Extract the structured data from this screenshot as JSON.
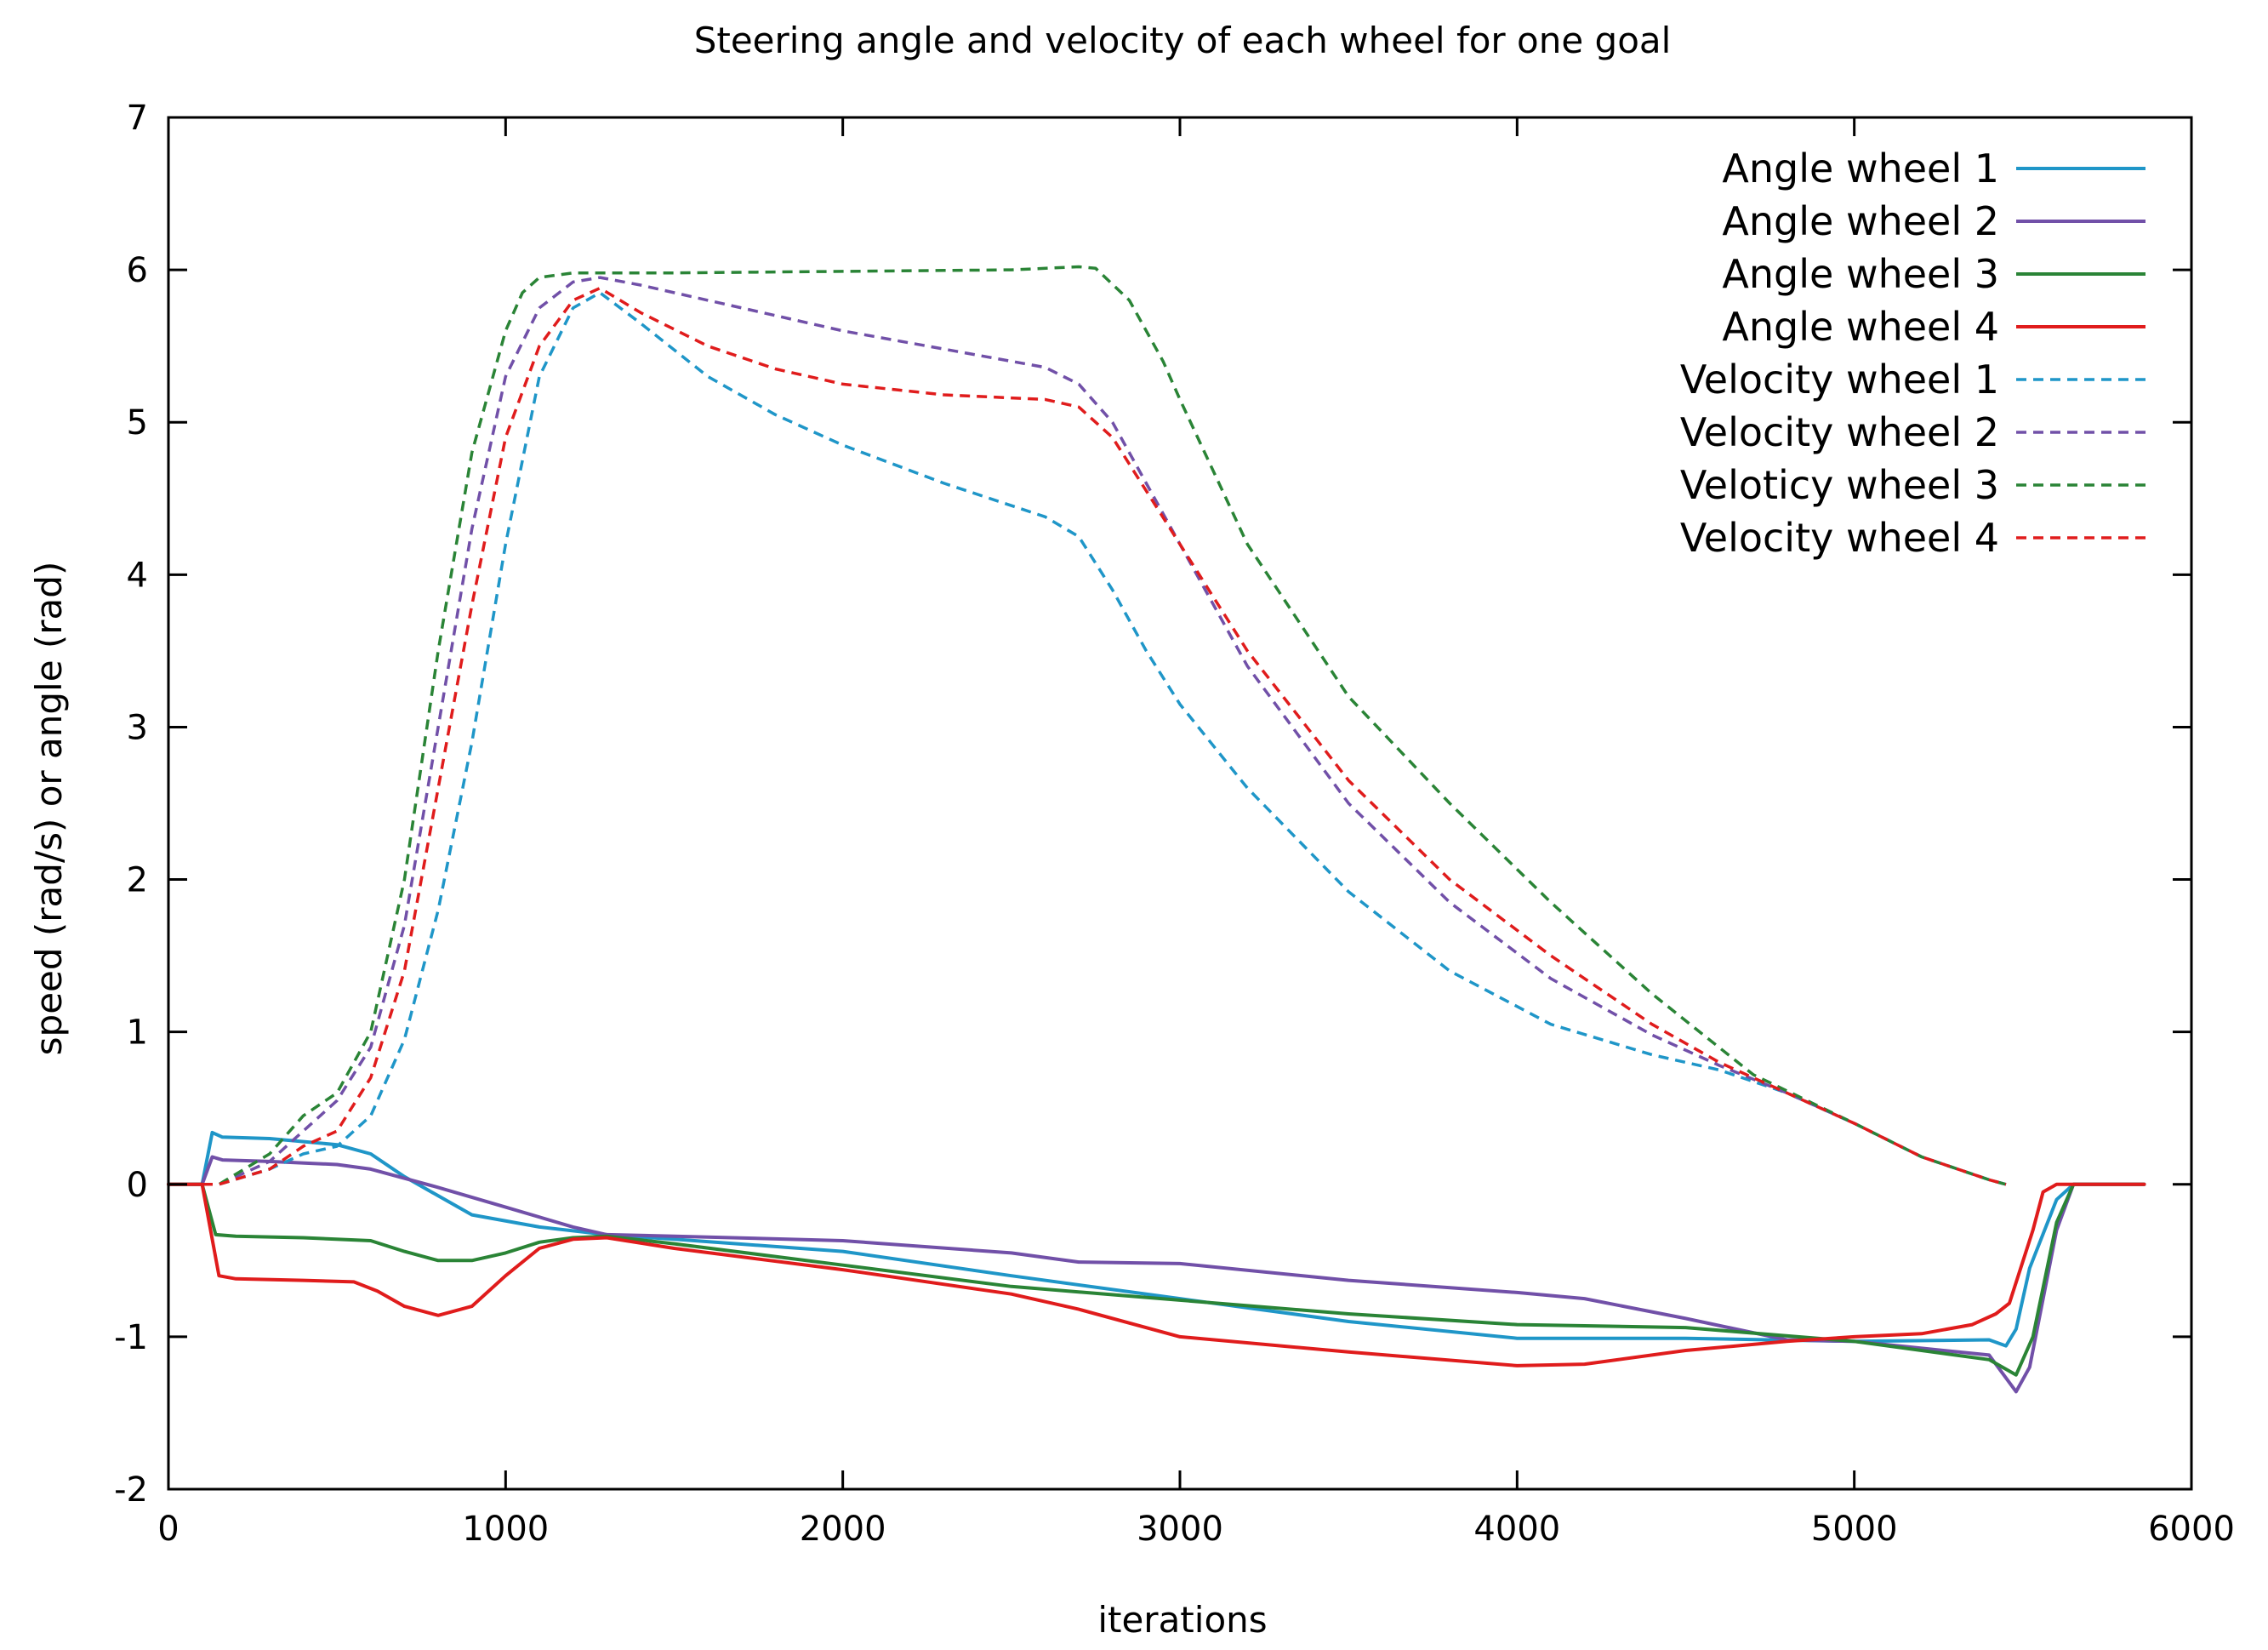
{
  "chart_data": {
    "type": "line",
    "title": "Steering angle and velocity of each wheel for one goal",
    "xlabel": "iterations",
    "ylabel": "speed (rad/s) or angle (rad)",
    "xlim": [
      0,
      6000
    ],
    "ylim": [
      -2,
      7
    ],
    "xticks": [
      0,
      1000,
      2000,
      3000,
      4000,
      5000,
      6000
    ],
    "yticks": [
      -2,
      -1,
      0,
      1,
      2,
      3,
      4,
      5,
      6,
      7
    ],
    "grid": false,
    "legend_position": "top-right",
    "series": [
      {
        "name": "Angle wheel 1",
        "color": "#1f96c8",
        "dash": "solid",
        "x": [
          0,
          100,
          130,
          160,
          300,
          500,
          600,
          700,
          900,
          1100,
          1300,
          1500,
          2000,
          2500,
          3000,
          3500,
          4000,
          4500,
          5000,
          5400,
          5450,
          5480,
          5520,
          5600,
          5650,
          5860
        ],
        "y": [
          0,
          0,
          0.34,
          0.31,
          0.3,
          0.26,
          0.2,
          0.05,
          -0.2,
          -0.28,
          -0.33,
          -0.36,
          -0.44,
          -0.6,
          -0.75,
          -0.9,
          -1.01,
          -1.01,
          -1.03,
          -1.02,
          -1.06,
          -0.95,
          -0.55,
          -0.1,
          0,
          0
        ]
      },
      {
        "name": "Angle wheel 2",
        "color": "#7150a8",
        "dash": "solid",
        "x": [
          0,
          100,
          130,
          160,
          300,
          500,
          600,
          800,
          1000,
          1200,
          1300,
          1500,
          2000,
          2500,
          2700,
          3000,
          3500,
          4000,
          4200,
          4500,
          4800,
          5000,
          5400,
          5480,
          5520,
          5600,
          5650,
          5860
        ],
        "y": [
          0,
          0,
          0.18,
          0.16,
          0.15,
          0.13,
          0.1,
          -0.02,
          -0.15,
          -0.28,
          -0.33,
          -0.34,
          -0.37,
          -0.45,
          -0.51,
          -0.52,
          -0.63,
          -0.71,
          -0.75,
          -0.88,
          -1.02,
          -1.03,
          -1.12,
          -1.36,
          -1.2,
          -0.3,
          0,
          0
        ]
      },
      {
        "name": "Angle wheel 3",
        "color": "#2a8436",
        "dash": "solid",
        "x": [
          0,
          100,
          140,
          200,
          400,
          600,
          700,
          800,
          900,
          1000,
          1100,
          1200,
          1300,
          1500,
          2000,
          2500,
          3000,
          3500,
          4000,
          4500,
          5000,
          5400,
          5480,
          5530,
          5600,
          5650,
          5860
        ],
        "y": [
          0,
          0,
          -0.33,
          -0.34,
          -0.35,
          -0.37,
          -0.44,
          -0.5,
          -0.5,
          -0.45,
          -0.38,
          -0.35,
          -0.34,
          -0.39,
          -0.53,
          -0.67,
          -0.76,
          -0.85,
          -0.92,
          -0.94,
          -1.03,
          -1.15,
          -1.25,
          -1.0,
          -0.25,
          0,
          0
        ]
      },
      {
        "name": "Angle wheel 4",
        "color": "#e01c1c",
        "dash": "solid",
        "x": [
          0,
          100,
          150,
          200,
          400,
          550,
          620,
          700,
          800,
          900,
          1000,
          1100,
          1200,
          1300,
          1500,
          2000,
          2500,
          2700,
          3000,
          3500,
          4000,
          4200,
          4500,
          4800,
          5000,
          5200,
          5350,
          5420,
          5460,
          5530,
          5560,
          5600,
          5650,
          5860
        ],
        "y": [
          0,
          0,
          -0.6,
          -0.62,
          -0.63,
          -0.64,
          -0.7,
          -0.8,
          -0.86,
          -0.8,
          -0.6,
          -0.42,
          -0.36,
          -0.35,
          -0.42,
          -0.56,
          -0.72,
          -0.82,
          -1.0,
          -1.1,
          -1.19,
          -1.18,
          -1.09,
          -1.03,
          -1.0,
          -0.98,
          -0.92,
          -0.85,
          -0.78,
          -0.3,
          -0.05,
          0,
          0,
          0
        ]
      },
      {
        "name": "Velocity wheel 1",
        "color": "#1f96c8",
        "dash": "dashed",
        "x": [
          0,
          150,
          300,
          400,
          500,
          600,
          700,
          800,
          900,
          1000,
          1100,
          1200,
          1280,
          1400,
          1600,
          1800,
          2000,
          2300,
          2600,
          2700,
          2800,
          2900,
          3000,
          3200,
          3500,
          3800,
          4100,
          4400,
          4600,
          4800,
          5000,
          5200,
          5400,
          5450
        ],
        "y": [
          0,
          0,
          0.1,
          0.2,
          0.25,
          0.45,
          0.95,
          1.8,
          2.9,
          4.2,
          5.3,
          5.75,
          5.85,
          5.65,
          5.3,
          5.05,
          4.85,
          4.6,
          4.38,
          4.25,
          3.9,
          3.5,
          3.15,
          2.6,
          1.92,
          1.4,
          1.05,
          0.85,
          0.75,
          0.6,
          0.4,
          0.18,
          0.03,
          0
        ]
      },
      {
        "name": "Velocity wheel 2",
        "color": "#7150a8",
        "dash": "dashed",
        "x": [
          0,
          150,
          300,
          400,
          500,
          600,
          700,
          800,
          900,
          1000,
          1100,
          1200,
          1280,
          1400,
          1600,
          1800,
          2000,
          2300,
          2600,
          2700,
          2800,
          2900,
          3000,
          3200,
          3500,
          3800,
          4100,
          4400,
          4600,
          4800,
          5000,
          5200,
          5400,
          5450
        ],
        "y": [
          0,
          0,
          0.15,
          0.35,
          0.55,
          0.9,
          1.7,
          3.0,
          4.3,
          5.3,
          5.75,
          5.92,
          5.95,
          5.9,
          5.8,
          5.7,
          5.6,
          5.48,
          5.36,
          5.25,
          5.0,
          4.6,
          4.2,
          3.4,
          2.5,
          1.85,
          1.35,
          0.98,
          0.78,
          0.6,
          0.4,
          0.18,
          0.03,
          0
        ]
      },
      {
        "name": "Veloticy wheel 3",
        "color": "#2a8436",
        "dash": "dashed",
        "x": [
          0,
          150,
          300,
          400,
          500,
          600,
          700,
          800,
          900,
          1000,
          1050,
          1100,
          1200,
          1300,
          1500,
          2000,
          2500,
          2700,
          2750,
          2850,
          2950,
          3000,
          3200,
          3500,
          3800,
          4100,
          4400,
          4700,
          5000,
          5200,
          5400,
          5450
        ],
        "y": [
          0,
          0,
          0.2,
          0.45,
          0.6,
          1.0,
          2.0,
          3.5,
          4.8,
          5.6,
          5.85,
          5.95,
          5.98,
          5.98,
          5.98,
          5.99,
          6.0,
          6.02,
          6.01,
          5.8,
          5.4,
          5.15,
          4.2,
          3.2,
          2.5,
          1.85,
          1.25,
          0.72,
          0.4,
          0.18,
          0.03,
          0
        ]
      },
      {
        "name": "Velocity wheel 4",
        "color": "#e01c1c",
        "dash": "dashed",
        "x": [
          0,
          150,
          300,
          400,
          500,
          600,
          700,
          800,
          900,
          1000,
          1100,
          1200,
          1280,
          1400,
          1600,
          1800,
          2000,
          2300,
          2600,
          2700,
          2800,
          2900,
          3000,
          3200,
          3500,
          3800,
          4100,
          4400,
          4600,
          4800,
          5000,
          5200,
          5400,
          5450
        ],
        "y": [
          0,
          0,
          0.1,
          0.25,
          0.35,
          0.7,
          1.4,
          2.6,
          3.8,
          4.9,
          5.5,
          5.8,
          5.88,
          5.72,
          5.5,
          5.35,
          5.25,
          5.18,
          5.15,
          5.1,
          4.9,
          4.55,
          4.2,
          3.5,
          2.65,
          2.0,
          1.5,
          1.05,
          0.8,
          0.6,
          0.4,
          0.18,
          0.03,
          0
        ]
      }
    ]
  }
}
